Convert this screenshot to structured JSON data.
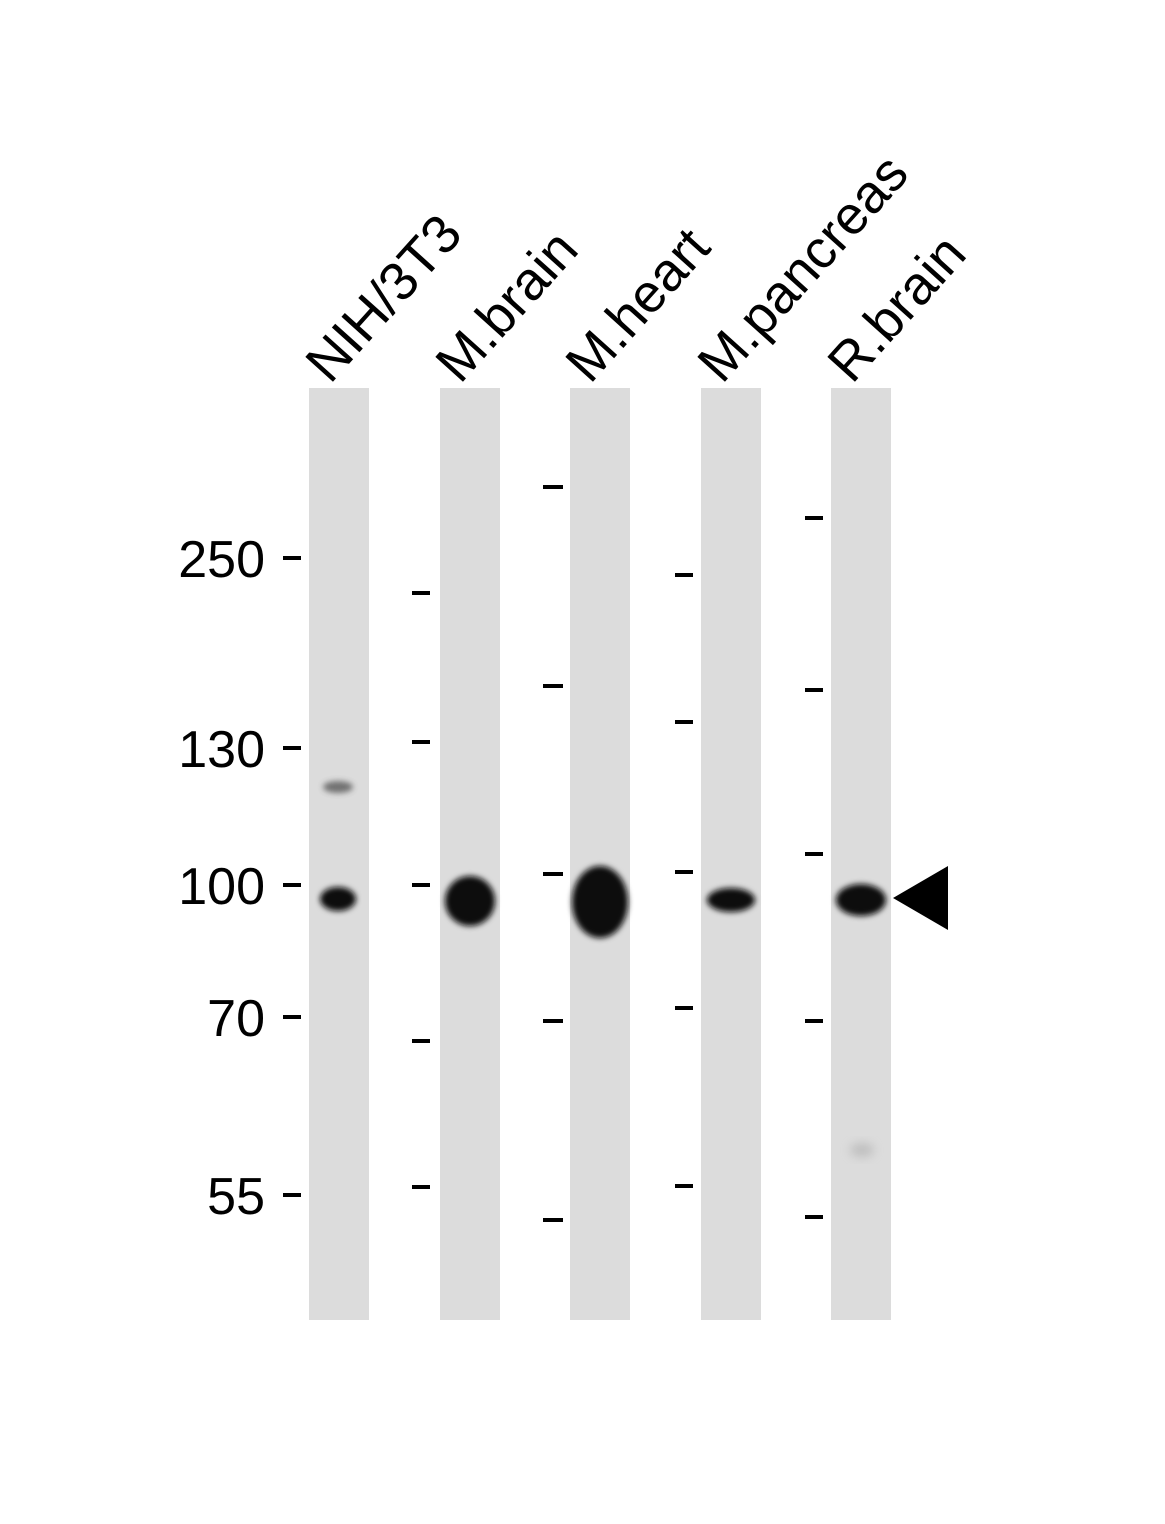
{
  "blot": {
    "lanes": [
      {
        "label": "NIH/3T3",
        "bands": [
          {
            "kda": 118,
            "intensity": 0.5
          },
          {
            "kda": 97,
            "intensity": 0.9
          }
        ]
      },
      {
        "label": "M.brain",
        "bands": [
          {
            "kda": 97,
            "intensity": 1.0
          }
        ]
      },
      {
        "label": "M.heart",
        "bands": [
          {
            "kda": 96,
            "intensity": 1.0
          }
        ]
      },
      {
        "label": "M.pancreas",
        "bands": [
          {
            "kda": 97,
            "intensity": 0.9
          }
        ]
      },
      {
        "label": "R.brain",
        "bands": [
          {
            "kda": 97,
            "intensity": 0.95
          },
          {
            "kda": 60,
            "intensity": 0.1
          }
        ]
      }
    ],
    "mw_markers": [
      "250",
      "130",
      "100",
      "70",
      "55"
    ],
    "arrow": "left-pointing-triangle",
    "colors": {
      "lane": "#dcdcdc",
      "band": "#111111",
      "background": "#ffffff"
    }
  }
}
